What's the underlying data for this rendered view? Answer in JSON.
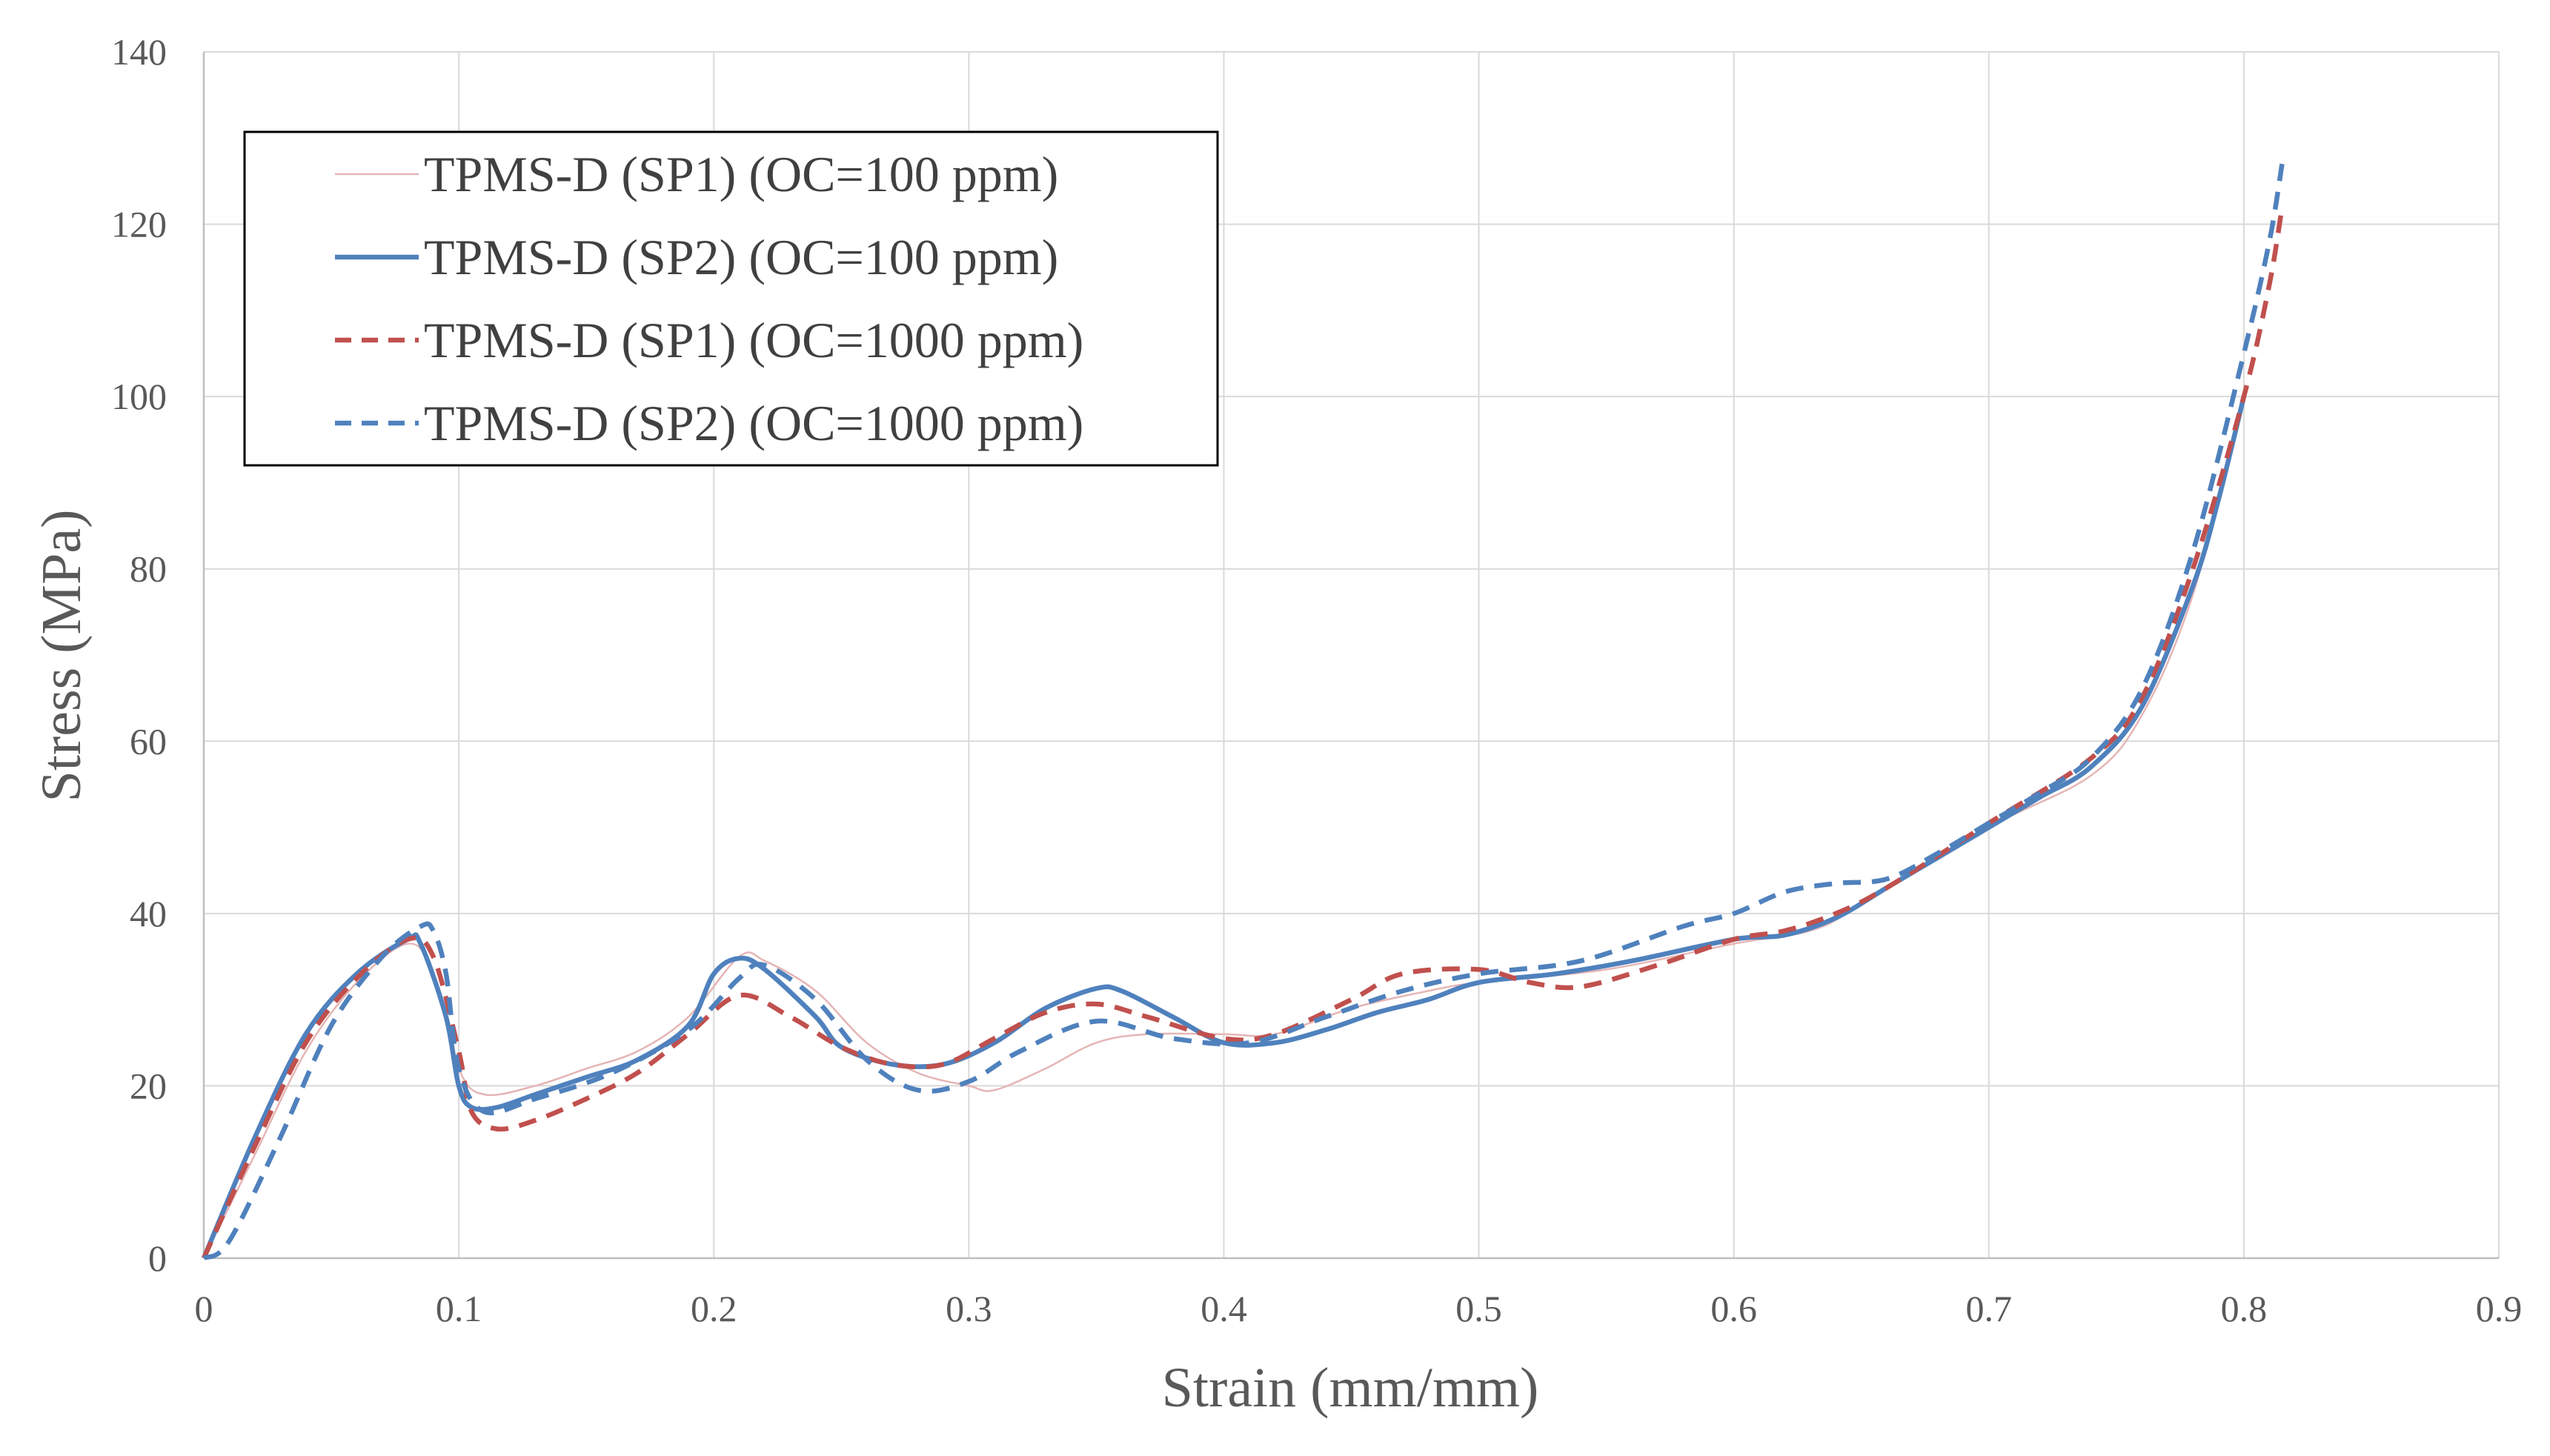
{
  "chart_data": {
    "type": "line",
    "title": "",
    "xlabel": "Strain (mm/mm)",
    "ylabel": "Stress (MPa)",
    "xlim": [
      0,
      0.9
    ],
    "ylim": [
      0,
      140
    ],
    "x_ticks": [
      0,
      0.1,
      0.2,
      0.3,
      0.4,
      0.5,
      0.6,
      0.7,
      0.8,
      0.9
    ],
    "x_tick_labels": [
      "0",
      "0.1",
      "0.2",
      "0.3",
      "0.4",
      "0.5",
      "0.6",
      "0.7",
      "0.8",
      "0.9"
    ],
    "y_ticks": [
      0,
      20,
      40,
      60,
      80,
      100,
      120,
      140
    ],
    "y_tick_labels": [
      "0",
      "20",
      "40",
      "60",
      "80",
      "100",
      "120",
      "140"
    ],
    "grid": true,
    "legend_position": "top-left",
    "series": [
      {
        "name": "TPMS-D (SP1) (OC=100 ppm)",
        "color": "#E5B5B5",
        "style": "solid-thin",
        "points": [
          [
            0,
            0
          ],
          [
            0.02,
            12
          ],
          [
            0.04,
            24
          ],
          [
            0.06,
            32
          ],
          [
            0.08,
            36.5
          ],
          [
            0.09,
            33
          ],
          [
            0.1,
            22
          ],
          [
            0.11,
            19
          ],
          [
            0.13,
            20
          ],
          [
            0.15,
            22
          ],
          [
            0.17,
            24
          ],
          [
            0.19,
            28
          ],
          [
            0.21,
            35
          ],
          [
            0.22,
            34.5
          ],
          [
            0.24,
            31
          ],
          [
            0.26,
            25
          ],
          [
            0.28,
            21.5
          ],
          [
            0.3,
            20
          ],
          [
            0.31,
            19.5
          ],
          [
            0.33,
            22
          ],
          [
            0.35,
            25
          ],
          [
            0.37,
            26
          ],
          [
            0.4,
            26
          ],
          [
            0.42,
            26
          ],
          [
            0.45,
            29
          ],
          [
            0.48,
            31
          ],
          [
            0.5,
            32
          ],
          [
            0.55,
            33.5
          ],
          [
            0.6,
            36.5
          ],
          [
            0.63,
            38
          ],
          [
            0.65,
            41
          ],
          [
            0.7,
            50
          ],
          [
            0.74,
            56
          ],
          [
            0.76,
            63
          ],
          [
            0.78,
            77
          ],
          [
            0.8,
            100
          ]
        ]
      },
      {
        "name": "TPMS-D (SP2) (OC=100 ppm)",
        "color": "#4F81BD",
        "style": "solid",
        "points": [
          [
            0,
            0
          ],
          [
            0.02,
            14
          ],
          [
            0.04,
            26
          ],
          [
            0.06,
            33
          ],
          [
            0.08,
            37
          ],
          [
            0.085,
            36.5
          ],
          [
            0.095,
            28
          ],
          [
            0.1,
            20
          ],
          [
            0.105,
            17.5
          ],
          [
            0.115,
            17.5
          ],
          [
            0.13,
            19
          ],
          [
            0.15,
            21
          ],
          [
            0.17,
            23
          ],
          [
            0.19,
            27
          ],
          [
            0.2,
            33
          ],
          [
            0.21,
            34.8
          ],
          [
            0.22,
            33.5
          ],
          [
            0.24,
            28
          ],
          [
            0.25,
            24.5
          ],
          [
            0.27,
            22.5
          ],
          [
            0.29,
            22.5
          ],
          [
            0.31,
            25
          ],
          [
            0.33,
            29
          ],
          [
            0.35,
            31.3
          ],
          [
            0.36,
            31
          ],
          [
            0.38,
            28
          ],
          [
            0.4,
            25
          ],
          [
            0.42,
            25
          ],
          [
            0.44,
            26.5
          ],
          [
            0.46,
            28.5
          ],
          [
            0.48,
            30
          ],
          [
            0.5,
            32
          ],
          [
            0.53,
            33
          ],
          [
            0.56,
            34.5
          ],
          [
            0.6,
            37
          ],
          [
            0.62,
            37.5
          ],
          [
            0.64,
            39.5
          ],
          [
            0.66,
            43
          ],
          [
            0.68,
            46.5
          ],
          [
            0.7,
            50
          ],
          [
            0.72,
            53.5
          ],
          [
            0.74,
            57
          ],
          [
            0.76,
            64
          ],
          [
            0.78,
            78
          ],
          [
            0.79,
            88
          ],
          [
            0.8,
            100
          ]
        ]
      },
      {
        "name": "TPMS-D (SP1) (OC=1000 ppm)",
        "color": "#C0504D",
        "style": "dashed",
        "points": [
          [
            0,
            0
          ],
          [
            0.02,
            13
          ],
          [
            0.04,
            25
          ],
          [
            0.06,
            32.5
          ],
          [
            0.08,
            37
          ],
          [
            0.09,
            35
          ],
          [
            0.1,
            24
          ],
          [
            0.105,
            17
          ],
          [
            0.115,
            15
          ],
          [
            0.13,
            16
          ],
          [
            0.15,
            18.5
          ],
          [
            0.17,
            21.5
          ],
          [
            0.19,
            26
          ],
          [
            0.21,
            30.5
          ],
          [
            0.23,
            28
          ],
          [
            0.25,
            24.5
          ],
          [
            0.27,
            22.5
          ],
          [
            0.29,
            22.5
          ],
          [
            0.31,
            25.5
          ],
          [
            0.33,
            28.5
          ],
          [
            0.35,
            29.5
          ],
          [
            0.37,
            28
          ],
          [
            0.4,
            25.5
          ],
          [
            0.42,
            26
          ],
          [
            0.45,
            30
          ],
          [
            0.47,
            33
          ],
          [
            0.5,
            33.5
          ],
          [
            0.52,
            32
          ],
          [
            0.54,
            31.5
          ],
          [
            0.57,
            34
          ],
          [
            0.6,
            37
          ],
          [
            0.62,
            38
          ],
          [
            0.64,
            40
          ],
          [
            0.66,
            43
          ],
          [
            0.7,
            50.5
          ],
          [
            0.74,
            58
          ],
          [
            0.76,
            65
          ],
          [
            0.78,
            80
          ],
          [
            0.8,
            100
          ],
          [
            0.81,
            113
          ],
          [
            0.815,
            122
          ]
        ]
      },
      {
        "name": "TPMS-D (SP2) (OC=1000 ppm)",
        "color": "#4F81BD",
        "style": "dashed",
        "points": [
          [
            0,
            0
          ],
          [
            0.01,
            2
          ],
          [
            0.03,
            14
          ],
          [
            0.05,
            27
          ],
          [
            0.07,
            35
          ],
          [
            0.085,
            38.5
          ],
          [
            0.09,
            38
          ],
          [
            0.095,
            33
          ],
          [
            0.1,
            22
          ],
          [
            0.11,
            17
          ],
          [
            0.13,
            18.5
          ],
          [
            0.16,
            21.5
          ],
          [
            0.19,
            26.5
          ],
          [
            0.21,
            32.5
          ],
          [
            0.22,
            34
          ],
          [
            0.24,
            30
          ],
          [
            0.26,
            23
          ],
          [
            0.28,
            19.5
          ],
          [
            0.3,
            20.5
          ],
          [
            0.32,
            24
          ],
          [
            0.35,
            27.5
          ],
          [
            0.38,
            25.5
          ],
          [
            0.41,
            25
          ],
          [
            0.44,
            28
          ],
          [
            0.47,
            31
          ],
          [
            0.5,
            33
          ],
          [
            0.54,
            34.5
          ],
          [
            0.58,
            38.5
          ],
          [
            0.6,
            40
          ],
          [
            0.62,
            42.5
          ],
          [
            0.64,
            43.5
          ],
          [
            0.66,
            44
          ],
          [
            0.68,
            47
          ],
          [
            0.7,
            50.5
          ],
          [
            0.72,
            54
          ],
          [
            0.74,
            58
          ],
          [
            0.76,
            66
          ],
          [
            0.78,
            82
          ],
          [
            0.8,
            105
          ],
          [
            0.81,
            118
          ],
          [
            0.815,
            127
          ]
        ]
      }
    ]
  }
}
